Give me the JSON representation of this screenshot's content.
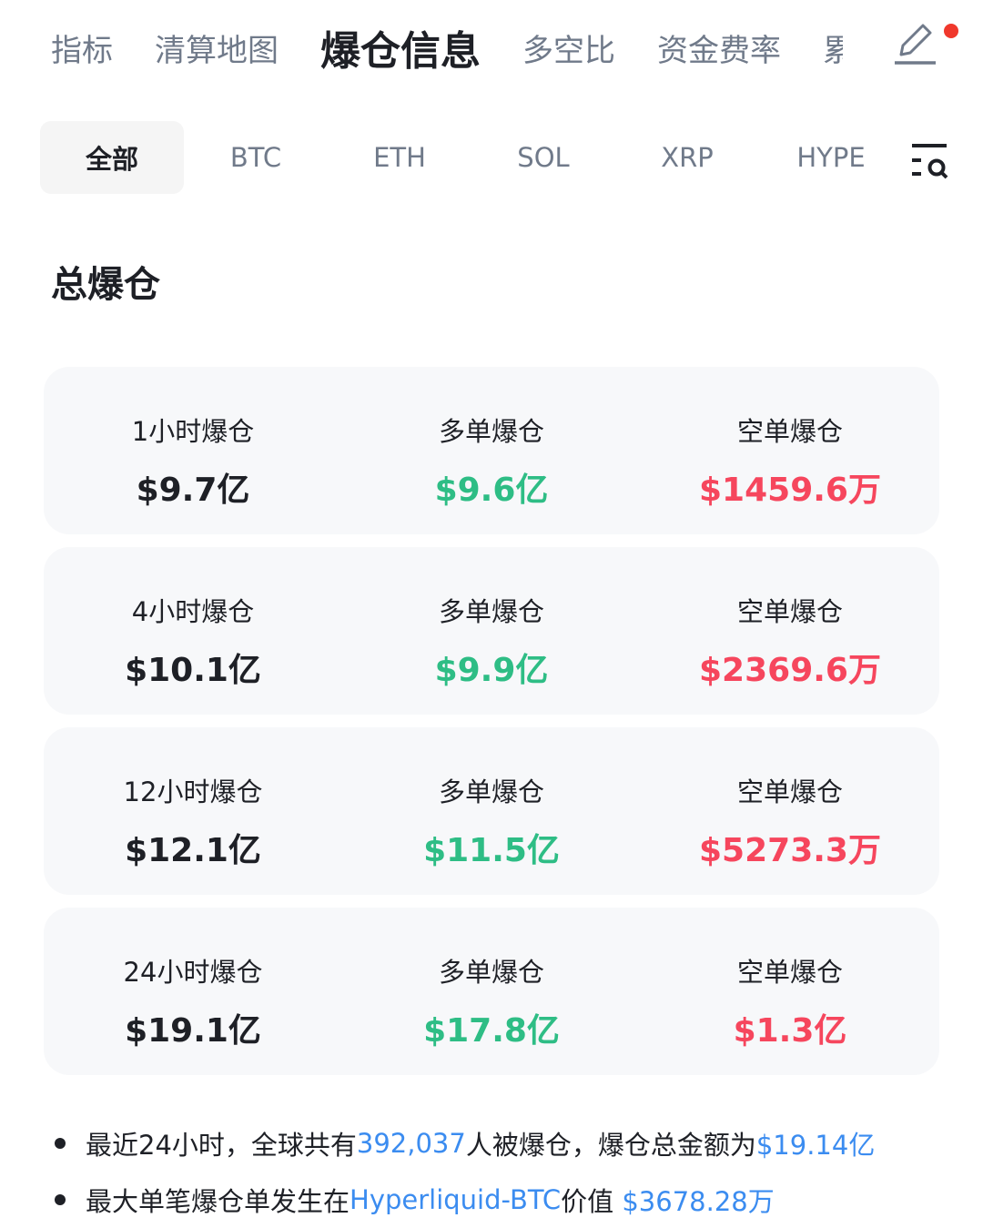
{
  "top_tabs": [
    "指标",
    "清算地图",
    "爆仓信息",
    "多空比",
    "资金费率",
    "累"
  ],
  "active_top_tab": 2,
  "coin_tabs": [
    "全部",
    "BTC",
    "ETH",
    "SOL",
    "XRP",
    "HYPE"
  ],
  "section_title": "总爆仓",
  "rows": [
    {
      "period": "1小时爆仓",
      "total": "$9.7亿",
      "long_label": "多单爆仓",
      "long": "$9.6亿",
      "short_label": "空单爆仓",
      "short": "$1459.6万"
    },
    {
      "period": "4小时爆仓",
      "total": "$10.1亿",
      "long_label": "多单爆仓",
      "long": "$9.9亿",
      "short_label": "空单爆仓",
      "short": "$2369.6万"
    },
    {
      "period": "12小时爆仓",
      "total": "$12.1亿",
      "long_label": "多单爆仓",
      "long": "$11.5亿",
      "short_label": "空单爆仓",
      "short": "$5273.3万"
    },
    {
      "period": "24小时爆仓",
      "total": "$19.1亿",
      "long_label": "多单爆仓",
      "long": "$17.8亿",
      "short_label": "空单爆仓",
      "short": "$1.3亿"
    }
  ],
  "summary": {
    "line1_a": "最近24小时，全球共有",
    "line1_count": "392,037",
    "line1_b": "人被爆仓，爆仓总金额为",
    "line1_total": "$19.14亿",
    "line2_a": "最大单笔爆仓单发生在",
    "line2_market": "Hyperliquid-BTC",
    "line2_b": "价值 ",
    "line2_value": "$3678.28万"
  },
  "colors": {
    "long": "#2ebd85",
    "short": "#f6465d",
    "link": "#3b8cf0",
    "badge": "#f0382c"
  }
}
